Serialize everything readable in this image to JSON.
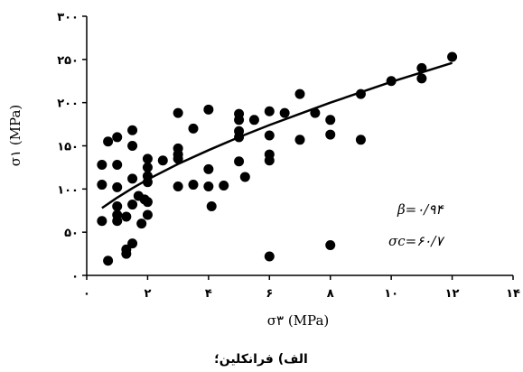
{
  "chart_data": {
    "type": "scatter",
    "xlabel": "σ۳ (MPa)",
    "ylabel": "σ۱ (MPa)",
    "xlim": [
      0,
      14
    ],
    "ylim": [
      0,
      300
    ],
    "x_ticks": [
      0,
      2,
      4,
      6,
      8,
      10,
      12,
      14
    ],
    "y_ticks": [
      0,
      50,
      100,
      150,
      200,
      250,
      300
    ],
    "x_tick_labels": [
      "۰",
      "۲",
      "۴",
      "۶",
      "۸",
      "۱۰",
      "۱۲",
      "۱۴"
    ],
    "y_tick_labels": [
      "۰",
      "۵۰",
      "۱۰۰",
      "۱۵۰",
      "۲۰۰",
      "۲۵۰",
      "۳۰۰"
    ],
    "grid": false,
    "points": [
      [
        0.5,
        128
      ],
      [
        0.5,
        105
      ],
      [
        0.5,
        63
      ],
      [
        0.7,
        155
      ],
      [
        0.7,
        17
      ],
      [
        1.0,
        160
      ],
      [
        1.0,
        128
      ],
      [
        1.0,
        102
      ],
      [
        1.0,
        80
      ],
      [
        1.0,
        70
      ],
      [
        1.0,
        63
      ],
      [
        1.3,
        30
      ],
      [
        1.3,
        25
      ],
      [
        1.3,
        68
      ],
      [
        1.5,
        168
      ],
      [
        1.5,
        150
      ],
      [
        1.5,
        112
      ],
      [
        1.5,
        82
      ],
      [
        1.5,
        37
      ],
      [
        1.7,
        92
      ],
      [
        1.8,
        60
      ],
      [
        1.9,
        88
      ],
      [
        2.0,
        135
      ],
      [
        2.0,
        125
      ],
      [
        2.0,
        115
      ],
      [
        2.0,
        108
      ],
      [
        2.0,
        85
      ],
      [
        2.0,
        70
      ],
      [
        2.5,
        133
      ],
      [
        3.0,
        188
      ],
      [
        3.0,
        147
      ],
      [
        3.0,
        140
      ],
      [
        3.0,
        135
      ],
      [
        3.0,
        103
      ],
      [
        3.5,
        170
      ],
      [
        3.5,
        105
      ],
      [
        4.0,
        192
      ],
      [
        4.0,
        123
      ],
      [
        4.0,
        103
      ],
      [
        4.1,
        80
      ],
      [
        4.5,
        104
      ],
      [
        5.0,
        187
      ],
      [
        5.0,
        180
      ],
      [
        5.0,
        167
      ],
      [
        5.0,
        160
      ],
      [
        5.0,
        132
      ],
      [
        5.2,
        114
      ],
      [
        5.5,
        180
      ],
      [
        6.0,
        190
      ],
      [
        6.0,
        162
      ],
      [
        6.0,
        140
      ],
      [
        6.0,
        133
      ],
      [
        6.0,
        22
      ],
      [
        6.5,
        188
      ],
      [
        7.0,
        210
      ],
      [
        7.0,
        157
      ],
      [
        7.5,
        188
      ],
      [
        8.0,
        180
      ],
      [
        8.0,
        163
      ],
      [
        8.0,
        35
      ],
      [
        9.0,
        210
      ],
      [
        9.0,
        157
      ],
      [
        10.0,
        225
      ],
      [
        11.0,
        240
      ],
      [
        11.0,
        228
      ],
      [
        12.0,
        253
      ]
    ],
    "fit_curve": {
      "x": [
        0.5,
        1,
        1.5,
        2,
        3,
        4,
        5,
        6,
        7,
        8,
        9,
        10,
        11,
        12
      ],
      "y": [
        78,
        90,
        101,
        111,
        129,
        145,
        160,
        174,
        187,
        200,
        212,
        224,
        235,
        246
      ]
    },
    "annotations": [
      "β=۰/۹۴",
      "σc=۶۰/۷"
    ]
  },
  "caption": "الف) فرانکلین؛"
}
